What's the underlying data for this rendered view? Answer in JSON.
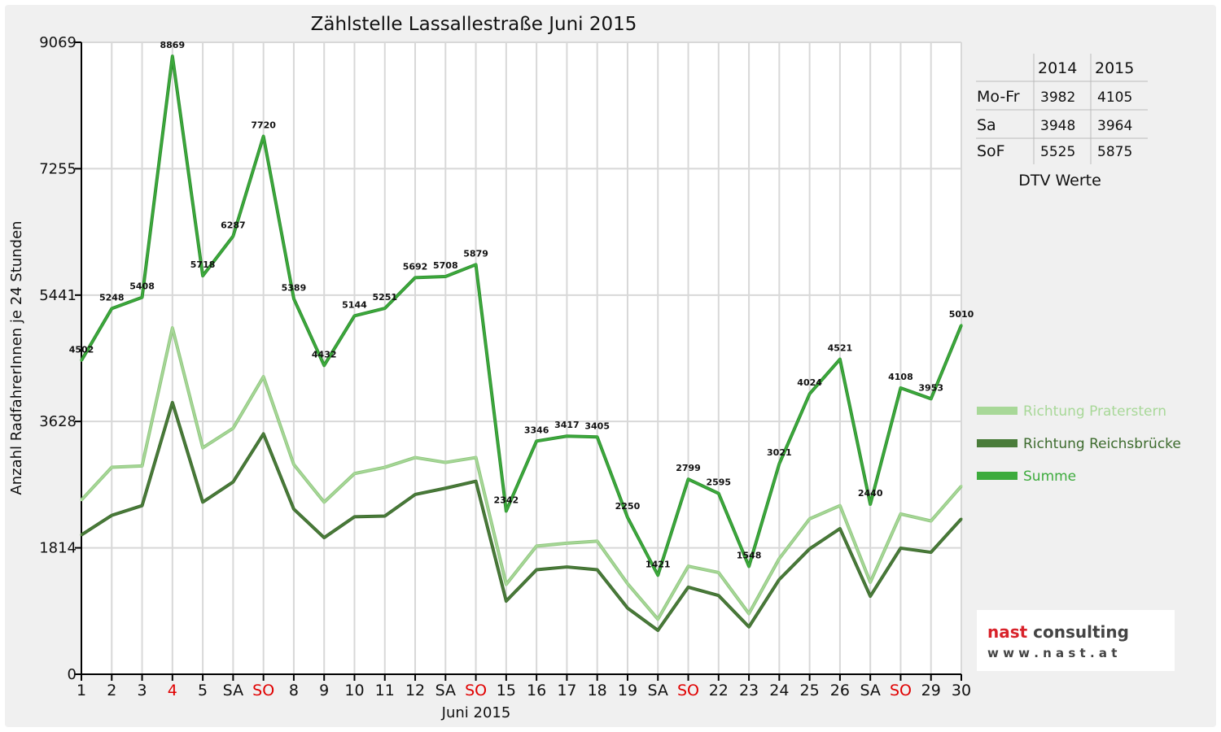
{
  "chart_data": {
    "type": "line",
    "title": "Zählstelle Lassallestraße Juni 2015",
    "xlabel": "Juni 2015",
    "ylabel": "Anzahl RadfahrerInnen je 24 Stunden",
    "ylim": [
      0,
      9069
    ],
    "yticks": [
      0,
      1814,
      3628,
      5441,
      7255,
      9069
    ],
    "grid": true,
    "categories": [
      "1",
      "2",
      "3",
      "4",
      "5",
      "SA",
      "SO",
      "8",
      "9",
      "10",
      "11",
      "12",
      "SA",
      "SO",
      "15",
      "16",
      "17",
      "18",
      "19",
      "SA",
      "SO",
      "22",
      "23",
      "24",
      "25",
      "26",
      "SA",
      "SO",
      "29",
      "30"
    ],
    "red_categories": [
      3,
      6,
      13,
      20,
      27
    ],
    "series": [
      {
        "name": "Richtung Praterstern",
        "color": "#a8d898",
        "values": [
          2500,
          2970,
          2990,
          4970,
          3250,
          3530,
          4270,
          3010,
          2470,
          2880,
          2970,
          3110,
          3040,
          3110,
          1290,
          1840,
          1880,
          1910,
          1300,
          790,
          1550,
          1460,
          870,
          1660,
          2230,
          2420,
          1320,
          2300,
          2200,
          2700
        ]
      },
      {
        "name": "Richtung Reichsbrücke",
        "color": "#4a7c3a",
        "values": [
          2000,
          2280,
          2420,
          3900,
          2470,
          2760,
          3450,
          2370,
          1960,
          2260,
          2270,
          2580,
          2670,
          2770,
          1050,
          1500,
          1540,
          1500,
          950,
          630,
          1250,
          1130,
          680,
          1360,
          1800,
          2090,
          1120,
          1810,
          1750,
          2230
        ]
      },
      {
        "name": "Summe",
        "color": "#3dab3d",
        "values": [
          4502,
          5248,
          5408,
          8869,
          5718,
          6287,
          7720,
          5389,
          4432,
          5144,
          5251,
          5692,
          5708,
          5879,
          2342,
          3346,
          3417,
          3405,
          2250,
          1421,
          2799,
          2595,
          1548,
          3021,
          4024,
          4521,
          2440,
          4108,
          3953,
          5010
        ]
      }
    ],
    "data_labels_series": "Summe",
    "legend_position": "right"
  },
  "dtv_table": {
    "headers": [
      "",
      "2014",
      "2015"
    ],
    "rows": [
      {
        "label": "Mo-Fr",
        "v2014": "3982",
        "v2015": "4105"
      },
      {
        "label": "Sa",
        "v2014": "3948",
        "v2015": "3964"
      },
      {
        "label": "SoF",
        "v2014": "5525",
        "v2015": "5875"
      }
    ],
    "caption": "DTV Werte"
  },
  "logo": {
    "line1": "nast consulting",
    "line2": "w w w . n a s t . a t"
  }
}
